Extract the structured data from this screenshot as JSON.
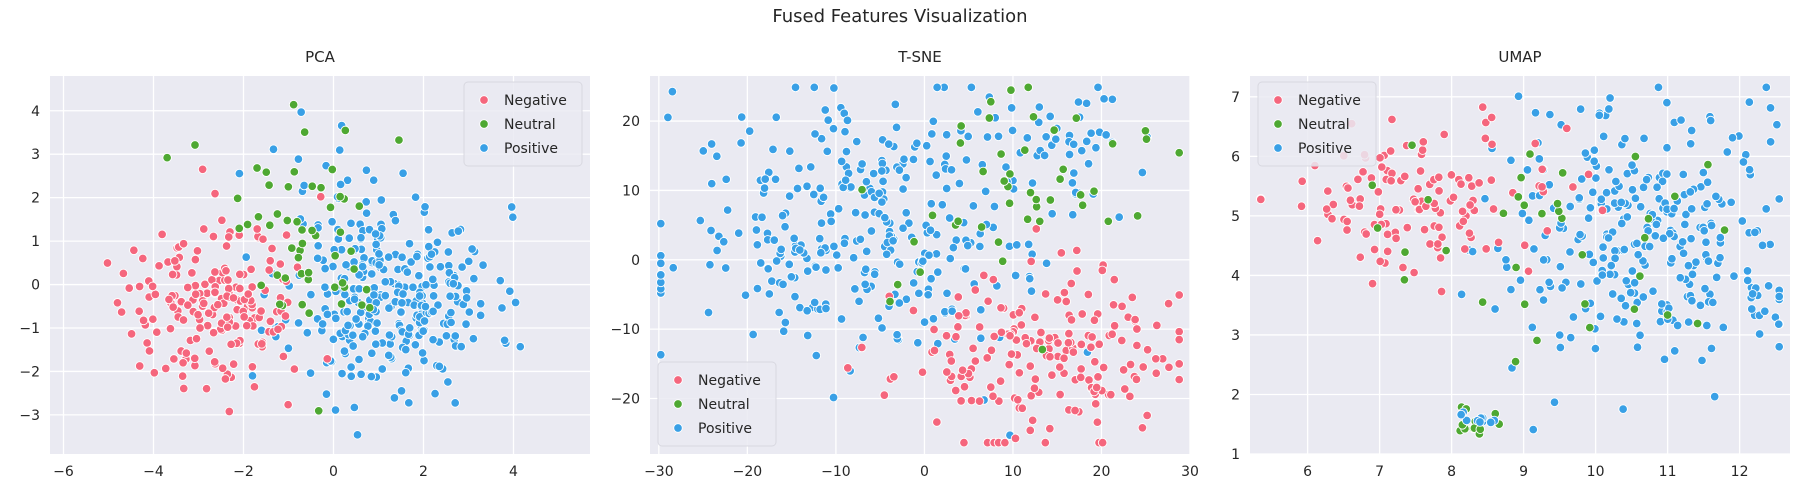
{
  "figure": {
    "title": "Fused Features Visualization"
  },
  "colors": {
    "Negative": "#f5667d",
    "Neutral": "#4ea832",
    "Positive": "#39a0e6",
    "plot_background": "#eaeaf2",
    "grid": "#ffffff"
  },
  "legend_labels": [
    "Negative",
    "Neutral",
    "Positive"
  ],
  "chart_data": [
    {
      "type": "scatter",
      "title": "PCA",
      "xlabel": "",
      "ylabel": "",
      "xlim": [
        -6.3,
        5.7
      ],
      "ylim": [
        -3.9,
        4.8
      ],
      "xticks": [
        -6,
        -4,
        -2,
        0,
        2,
        4
      ],
      "yticks": [
        -3,
        -2,
        -1,
        0,
        1,
        2,
        3,
        4
      ],
      "grid": true,
      "legend_position": "top-right",
      "clusters": [
        {
          "label": "Positive",
          "n": 300,
          "cx": 1.3,
          "cy": -0.3,
          "sx": 1.15,
          "sy": 1.05,
          "seed": 11
        },
        {
          "label": "Positive",
          "n": 25,
          "cx": 0.3,
          "cy": 2.2,
          "sx": 0.9,
          "sy": 0.9,
          "seed": 12
        },
        {
          "label": "Negative",
          "n": 190,
          "cx": -2.6,
          "cy": -0.5,
          "sx": 1.05,
          "sy": 0.95,
          "seed": 13
        },
        {
          "label": "Neutral",
          "n": 55,
          "cx": -0.2,
          "cy": 1.3,
          "sx": 1.2,
          "sy": 1.3,
          "seed": 14
        }
      ]
    },
    {
      "type": "scatter",
      "title": "T-SNE",
      "xlabel": "",
      "ylabel": "",
      "xlim": [
        -31,
        30
      ],
      "ylim": [
        -28,
        26.5
      ],
      "xticks": [
        -30,
        -20,
        -10,
        0,
        10,
        20,
        30
      ],
      "yticks": [
        -20,
        -10,
        0,
        10,
        20
      ],
      "grid": true,
      "legend_position": "bottom-left",
      "clusters": [
        {
          "label": "Positive",
          "n": 310,
          "cx": -6,
          "cy": 4,
          "sx": 11,
          "sy": 9.5,
          "seed": 21
        },
        {
          "label": "Positive",
          "n": 45,
          "cx": 14,
          "cy": 17,
          "sx": 5,
          "sy": 4,
          "seed": 22
        },
        {
          "label": "Negative",
          "n": 190,
          "cx": 13,
          "cy": -14,
          "sx": 8,
          "sy": 6,
          "seed": 23
        },
        {
          "label": "Neutral",
          "n": 45,
          "cx": 9,
          "cy": 8,
          "sx": 8,
          "sy": 9,
          "seed": 24
        }
      ]
    },
    {
      "type": "scatter",
      "title": "UMAP",
      "xlabel": "",
      "ylabel": "",
      "xlim": [
        5.2,
        12.7
      ],
      "ylim": [
        1,
        7.35
      ],
      "xticks": [
        6,
        7,
        8,
        9,
        10,
        11,
        12
      ],
      "yticks": [
        1,
        2,
        3,
        4,
        5,
        6,
        7
      ],
      "grid": true,
      "legend_position": "top-left",
      "clusters": [
        {
          "label": "Positive",
          "n": 300,
          "cx": 10.6,
          "cy": 4.6,
          "sx": 1.1,
          "sy": 1.1,
          "seed": 31
        },
        {
          "label": "Negative",
          "n": 130,
          "cx": 7.4,
          "cy": 5.3,
          "sx": 1.0,
          "sy": 0.65,
          "seed": 32
        },
        {
          "label": "Neutral",
          "n": 35,
          "cx": 9.2,
          "cy": 4.3,
          "sx": 1.2,
          "sy": 1.0,
          "seed": 33
        },
        {
          "label": "Neutral",
          "n": 12,
          "cx": 8.3,
          "cy": 1.5,
          "sx": 0.15,
          "sy": 0.15,
          "seed": 34
        },
        {
          "label": "Positive",
          "n": 10,
          "cx": 8.4,
          "cy": 1.6,
          "sx": 0.15,
          "sy": 0.15,
          "seed": 35
        }
      ]
    }
  ]
}
